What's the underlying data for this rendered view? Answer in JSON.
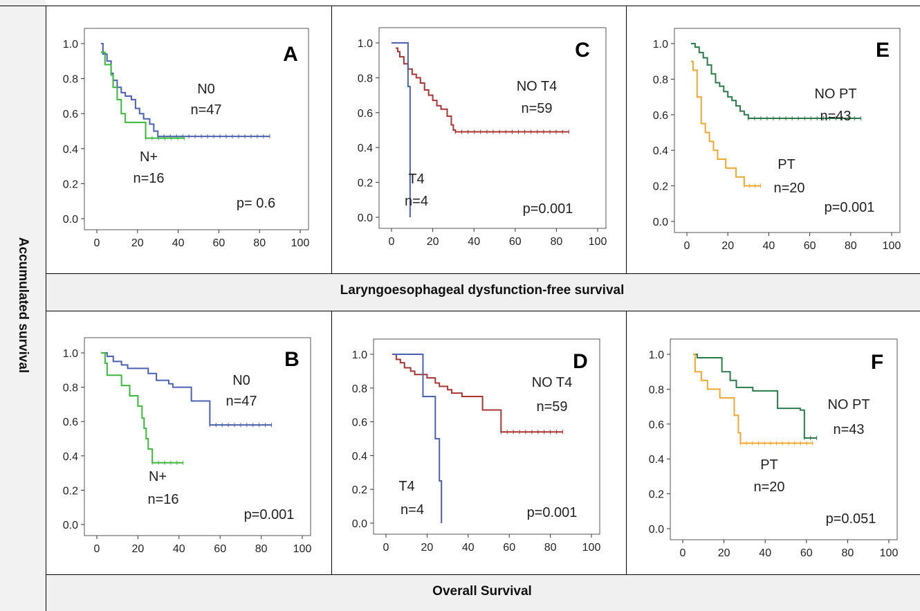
{
  "figure": {
    "y_axis_title": "Accumulated survival",
    "row_titles": [
      "Laryngoesophageal dysfunction-free survival",
      "Overall Survival"
    ]
  },
  "chart_data": [
    {
      "type": "line",
      "panel": "A",
      "xlim": [
        0,
        100
      ],
      "ylim": [
        0,
        1
      ],
      "x_ticks": [
        0,
        20,
        40,
        60,
        80,
        100
      ],
      "y_ticks": [
        0.0,
        0.2,
        0.4,
        0.6,
        0.8,
        1.0
      ],
      "p_value": "p= 0.6",
      "series": [
        {
          "name": "N0",
          "n": "n=47",
          "color": "#4a60b0",
          "points": [
            [
              2,
              1.0
            ],
            [
              3,
              0.94
            ],
            [
              5,
              0.9
            ],
            [
              7,
              0.83
            ],
            [
              8,
              0.79
            ],
            [
              10,
              0.75
            ],
            [
              12,
              0.72
            ],
            [
              14,
              0.7
            ],
            [
              17,
              0.68
            ],
            [
              19,
              0.63
            ],
            [
              21,
              0.6
            ],
            [
              23,
              0.57
            ],
            [
              26,
              0.54
            ],
            [
              28,
              0.5
            ],
            [
              30,
              0.47
            ],
            [
              85,
              0.47
            ]
          ]
        },
        {
          "name": "N+",
          "n": "n=16",
          "color": "#3cb83c",
          "points": [
            [
              2,
              0.95
            ],
            [
              4,
              0.88
            ],
            [
              7,
              0.82
            ],
            [
              8,
              0.75
            ],
            [
              10,
              0.68
            ],
            [
              12,
              0.6
            ],
            [
              14,
              0.55
            ],
            [
              24,
              0.46
            ],
            [
              43,
              0.46
            ]
          ]
        }
      ]
    },
    {
      "type": "line",
      "panel": "B",
      "xlim": [
        0,
        100
      ],
      "ylim": [
        0,
        1
      ],
      "x_ticks": [
        0,
        20,
        40,
        60,
        80,
        100
      ],
      "y_ticks": [
        0.0,
        0.2,
        0.4,
        0.6,
        0.8,
        1.0
      ],
      "p_value": "p=0.001",
      "series": [
        {
          "name": "N0",
          "n": "n=47",
          "color": "#4a60b0",
          "points": [
            [
              3,
              1.0
            ],
            [
              5,
              0.98
            ],
            [
              8,
              0.95
            ],
            [
              12,
              0.93
            ],
            [
              15,
              0.91
            ],
            [
              25,
              0.88
            ],
            [
              29,
              0.84
            ],
            [
              35,
              0.82
            ],
            [
              37,
              0.8
            ],
            [
              46,
              0.72
            ],
            [
              55,
              0.58
            ],
            [
              85,
              0.58
            ]
          ]
        },
        {
          "name": "N+",
          "n": "n=16",
          "color": "#3cb83c",
          "points": [
            [
              2,
              1.0
            ],
            [
              4,
              0.94
            ],
            [
              5,
              0.87
            ],
            [
              12,
              0.81
            ],
            [
              16,
              0.75
            ],
            [
              20,
              0.69
            ],
            [
              22,
              0.62
            ],
            [
              23,
              0.56
            ],
            [
              24,
              0.5
            ],
            [
              25,
              0.44
            ],
            [
              27,
              0.36
            ],
            [
              42,
              0.36
            ]
          ]
        }
      ]
    },
    {
      "type": "line",
      "panel": "C",
      "xlim": [
        0,
        100
      ],
      "ylim": [
        0,
        1
      ],
      "x_ticks": [
        0,
        20,
        40,
        60,
        80,
        100
      ],
      "y_ticks": [
        0.0,
        0.2,
        0.4,
        0.6,
        0.8,
        1.0
      ],
      "p_value": "p=0.001",
      "series": [
        {
          "name": "NO T4",
          "n": "n=59",
          "color": "#a83434",
          "points": [
            [
              2,
              0.97
            ],
            [
              3,
              0.95
            ],
            [
              4,
              0.92
            ],
            [
              6,
              0.88
            ],
            [
              8,
              0.85
            ],
            [
              10,
              0.82
            ],
            [
              12,
              0.8
            ],
            [
              14,
              0.77
            ],
            [
              16,
              0.73
            ],
            [
              18,
              0.7
            ],
            [
              20,
              0.67
            ],
            [
              22,
              0.64
            ],
            [
              24,
              0.62
            ],
            [
              27,
              0.58
            ],
            [
              29,
              0.53
            ],
            [
              30,
              0.5
            ],
            [
              31,
              0.49
            ],
            [
              86,
              0.49
            ]
          ]
        },
        {
          "name": "T4",
          "n": "n=4",
          "color": "#4a60b0",
          "points": [
            [
              0,
              1.0
            ],
            [
              8,
              1.0
            ],
            [
              8,
              0.75
            ],
            [
              9,
              0.25
            ],
            [
              9,
              0.0
            ]
          ]
        }
      ]
    },
    {
      "type": "line",
      "panel": "D",
      "xlim": [
        0,
        100
      ],
      "ylim": [
        0,
        1
      ],
      "x_ticks": [
        0,
        20,
        40,
        60,
        80,
        100
      ],
      "y_ticks": [
        0.0,
        0.2,
        0.4,
        0.6,
        0.8,
        1.0
      ],
      "p_value": "p=0.001",
      "series": [
        {
          "name": "NO T4",
          "n": "n=59",
          "color": "#a83434",
          "points": [
            [
              3,
              1.0
            ],
            [
              5,
              0.97
            ],
            [
              7,
              0.95
            ],
            [
              9,
              0.92
            ],
            [
              12,
              0.9
            ],
            [
              14,
              0.88
            ],
            [
              20,
              0.86
            ],
            [
              24,
              0.83
            ],
            [
              26,
              0.81
            ],
            [
              30,
              0.79
            ],
            [
              32,
              0.77
            ],
            [
              37,
              0.75
            ],
            [
              47,
              0.67
            ],
            [
              56,
              0.54
            ],
            [
              86,
              0.54
            ]
          ]
        },
        {
          "name": "T4",
          "n": "n=4",
          "color": "#4a60b0",
          "points": [
            [
              3,
              1.0
            ],
            [
              18,
              1.0
            ],
            [
              18,
              0.75
            ],
            [
              24,
              0.75
            ],
            [
              24,
              0.5
            ],
            [
              26,
              0.25
            ],
            [
              27,
              0.0
            ]
          ]
        }
      ]
    },
    {
      "type": "line",
      "panel": "E",
      "xlim": [
        0,
        100
      ],
      "ylim": [
        0,
        1
      ],
      "x_ticks": [
        0,
        20,
        40,
        60,
        80,
        100
      ],
      "y_ticks": [
        0.0,
        0.2,
        0.4,
        0.6,
        0.8,
        1.0
      ],
      "p_value": "p=0.001",
      "series": [
        {
          "name": "NO PT",
          "n": "n=43",
          "color": "#2a7a4a",
          "points": [
            [
              2,
              1.0
            ],
            [
              4,
              0.98
            ],
            [
              6,
              0.95
            ],
            [
              8,
              0.92
            ],
            [
              10,
              0.88
            ],
            [
              12,
              0.83
            ],
            [
              14,
              0.78
            ],
            [
              16,
              0.76
            ],
            [
              18,
              0.73
            ],
            [
              20,
              0.7
            ],
            [
              22,
              0.68
            ],
            [
              24,
              0.65
            ],
            [
              26,
              0.62
            ],
            [
              28,
              0.6
            ],
            [
              30,
              0.58
            ],
            [
              85,
              0.58
            ]
          ]
        },
        {
          "name": "PT",
          "n": "n=20",
          "color": "#f0a830",
          "points": [
            [
              2,
              0.9
            ],
            [
              3,
              0.85
            ],
            [
              5,
              0.7
            ],
            [
              7,
              0.55
            ],
            [
              9,
              0.5
            ],
            [
              11,
              0.45
            ],
            [
              13,
              0.4
            ],
            [
              15,
              0.35
            ],
            [
              19,
              0.3
            ],
            [
              24,
              0.25
            ],
            [
              28,
              0.2
            ],
            [
              36,
              0.2
            ]
          ]
        }
      ]
    },
    {
      "type": "line",
      "panel": "F",
      "xlim": [
        0,
        100
      ],
      "ylim": [
        0,
        1
      ],
      "x_ticks": [
        0,
        20,
        40,
        60,
        80,
        100
      ],
      "y_ticks": [
        0.0,
        0.2,
        0.4,
        0.6,
        0.8,
        1.0
      ],
      "p_value": "p=0.051",
      "series": [
        {
          "name": "NO PT",
          "n": "n=43",
          "color": "#2a7a4a",
          "points": [
            [
              5,
              1.0
            ],
            [
              7,
              0.98
            ],
            [
              16,
              0.98
            ],
            [
              19,
              0.9
            ],
            [
              23,
              0.85
            ],
            [
              26,
              0.81
            ],
            [
              34,
              0.79
            ],
            [
              46,
              0.69
            ],
            [
              57,
              0.68
            ],
            [
              59,
              0.52
            ],
            [
              65,
              0.52
            ]
          ]
        },
        {
          "name": "PT",
          "n": "n=20",
          "color": "#f0a830",
          "points": [
            [
              5,
              1.0
            ],
            [
              6,
              0.9
            ],
            [
              9,
              0.85
            ],
            [
              12,
              0.8
            ],
            [
              18,
              0.75
            ],
            [
              25,
              0.65
            ],
            [
              27,
              0.55
            ],
            [
              28,
              0.49
            ],
            [
              63,
              0.49
            ]
          ]
        }
      ]
    }
  ]
}
